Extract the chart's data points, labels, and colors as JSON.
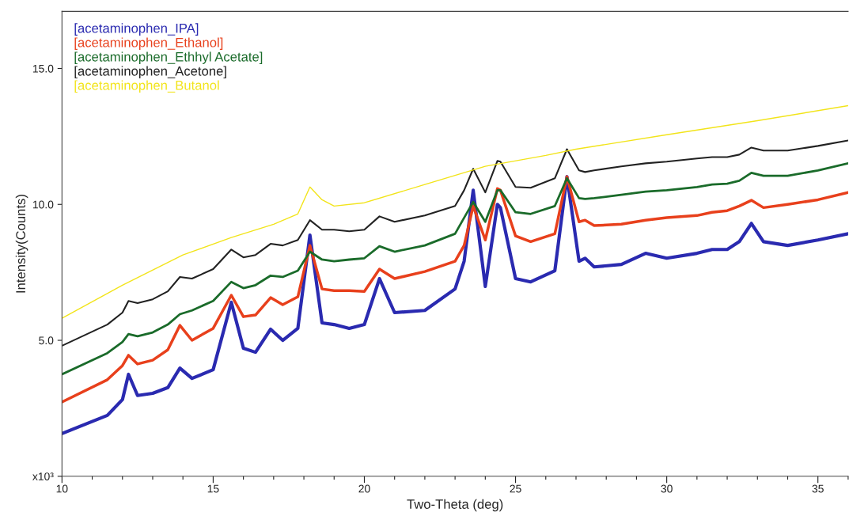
{
  "chart_data": {
    "type": "line",
    "xlabel": "Two-Theta (deg)",
    "ylabel": "Intensity(Counts)",
    "xlim": [
      10,
      36
    ],
    "ylim": [
      0,
      17.1
    ],
    "xticks": [
      10,
      {
        "value": 11,
        "label": null
      },
      {
        "value": 12,
        "label": null
      },
      {
        "value": 13,
        "label": null
      },
      {
        "value": 14,
        "label": null
      },
      15,
      {
        "value": 16,
        "label": null
      },
      {
        "value": 17,
        "label": null
      },
      {
        "value": 18,
        "label": null
      },
      {
        "value": 19,
        "label": null
      },
      20,
      {
        "value": 21,
        "label": null
      },
      {
        "value": 22,
        "label": null
      },
      {
        "value": 23,
        "label": null
      },
      {
        "value": 24,
        "label": null
      },
      25,
      {
        "value": 26,
        "label": null
      },
      {
        "value": 27,
        "label": null
      },
      {
        "value": 28,
        "label": null
      },
      {
        "value": 29,
        "label": null
      },
      30,
      {
        "value": 31,
        "label": null
      },
      {
        "value": 32,
        "label": null
      },
      {
        "value": 33,
        "label": null
      },
      {
        "value": 34,
        "label": null
      },
      35,
      {
        "value": 36,
        "label": null
      }
    ],
    "yticks": [
      {
        "value": 0,
        "label": "x10³"
      },
      {
        "value": 5,
        "label": "5.0"
      },
      {
        "value": 10,
        "label": "10.0"
      },
      {
        "value": 15,
        "label": "15.0"
      }
    ],
    "grid": false,
    "legend": "top left",
    "line_style": "solid",
    "marker": "none",
    "x": [
      10,
      11.5,
      12.0,
      12.2,
      12.5,
      13,
      13.5,
      13.9,
      14.3,
      15,
      15.6,
      16,
      16.4,
      16.9,
      17.3,
      17.8,
      18.2,
      18.6,
      19,
      19.5,
      20,
      20.5,
      21,
      22,
      23,
      23.3,
      23.6,
      24.0,
      24.4,
      24.5,
      25,
      25.5,
      26.3,
      26.7,
      27.1,
      27.3,
      27.6,
      28.5,
      29.3,
      30,
      31,
      31.5,
      32,
      32.4,
      32.8,
      33.2,
      34,
      35,
      36
    ],
    "series": [
      {
        "name": "[acetaminophen_IPA]",
        "color": "#2a2ab0",
        "values": [
          1.57,
          2.24,
          2.82,
          3.75,
          2.97,
          3.05,
          3.26,
          3.98,
          3.6,
          3.92,
          6.4,
          4.71,
          4.56,
          5.41,
          5.0,
          5.44,
          8.87,
          5.64,
          5.58,
          5.44,
          5.58,
          7.27,
          6.02,
          6.1,
          6.89,
          7.91,
          10.52,
          6.98,
          10.0,
          9.88,
          7.27,
          7.15,
          7.56,
          11.02,
          7.91,
          8.02,
          7.7,
          7.79,
          8.2,
          8.02,
          8.2,
          8.34,
          8.34,
          8.63,
          9.3,
          8.63,
          8.49,
          8.69,
          8.92
        ]
      },
      {
        "name": "[acetaminophen_Ethanol]",
        "color": "#e8401c",
        "values": [
          2.73,
          3.55,
          4.07,
          4.45,
          4.13,
          4.27,
          4.65,
          5.55,
          5.0,
          5.44,
          6.66,
          5.87,
          5.93,
          6.57,
          6.31,
          6.6,
          8.49,
          6.89,
          6.83,
          6.83,
          6.8,
          7.62,
          7.27,
          7.53,
          7.91,
          8.49,
          9.94,
          8.69,
          10.58,
          10.52,
          8.84,
          8.63,
          8.92,
          11.02,
          9.36,
          9.42,
          9.22,
          9.27,
          9.42,
          9.51,
          9.59,
          9.71,
          9.77,
          9.94,
          10.15,
          9.88,
          10.0,
          10.17,
          10.44
        ]
      },
      {
        "name": "[acetaminophen_Ethhyl Acetate]",
        "color": "#1a6b2a",
        "values": [
          3.75,
          4.53,
          4.94,
          5.23,
          5.15,
          5.29,
          5.58,
          5.96,
          6.1,
          6.45,
          7.15,
          6.92,
          7.03,
          7.38,
          7.33,
          7.56,
          8.26,
          7.97,
          7.91,
          7.97,
          8.02,
          8.46,
          8.26,
          8.49,
          8.92,
          9.51,
          10.09,
          9.36,
          10.52,
          10.52,
          9.71,
          9.65,
          9.94,
          10.96,
          10.23,
          10.2,
          10.23,
          10.35,
          10.47,
          10.52,
          10.64,
          10.73,
          10.76,
          10.87,
          11.16,
          11.05,
          11.05,
          11.25,
          11.51
        ]
      },
      {
        "name": "[acetaminophen_Acetone]",
        "color": "#222222",
        "values": [
          4.8,
          5.58,
          6.02,
          6.45,
          6.37,
          6.51,
          6.8,
          7.33,
          7.27,
          7.62,
          8.34,
          8.05,
          8.14,
          8.55,
          8.49,
          8.69,
          9.42,
          9.07,
          9.07,
          9.01,
          9.07,
          9.56,
          9.36,
          9.59,
          9.94,
          10.52,
          11.31,
          10.44,
          11.6,
          11.57,
          10.64,
          10.61,
          10.96,
          12.03,
          11.25,
          11.19,
          11.25,
          11.4,
          11.51,
          11.57,
          11.69,
          11.74,
          11.74,
          11.83,
          12.09,
          11.98,
          11.98,
          12.15,
          12.35
        ]
      },
      {
        "name": "[acetaminophen_Butanol",
        "color": "#f2e41a",
        "x": [
          10,
          12,
          14,
          15.6,
          17,
          17.8,
          18.2,
          18.6,
          19,
          20,
          22,
          24,
          26,
          27,
          30,
          33,
          36
        ],
        "values": [
          5.81,
          7.03,
          8.14,
          8.78,
          9.27,
          9.65,
          10.64,
          10.17,
          9.94,
          10.06,
          10.73,
          11.4,
          11.8,
          12.03,
          12.56,
          13.08,
          13.63
        ]
      }
    ]
  }
}
